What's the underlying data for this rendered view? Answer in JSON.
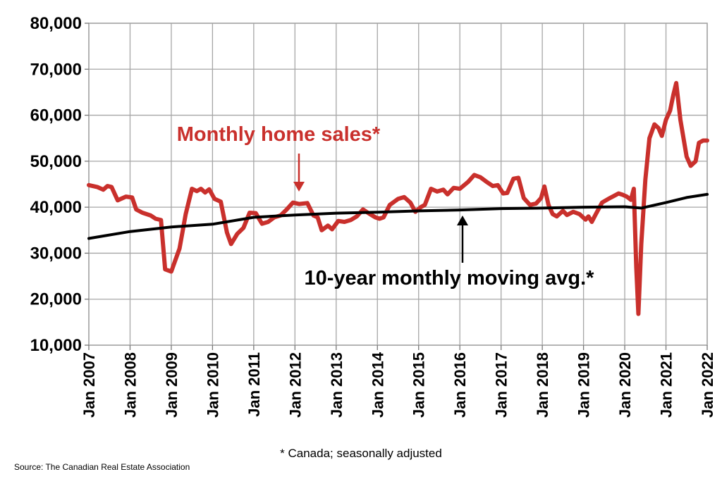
{
  "chart_data": {
    "type": "line",
    "ylim": [
      10000,
      80000
    ],
    "y_ticks": [
      10000,
      20000,
      30000,
      40000,
      50000,
      60000,
      70000,
      80000
    ],
    "y_tick_labels": [
      "10,000",
      "20,000",
      "30,000",
      "40,000",
      "50,000",
      "60,000",
      "70,000",
      "80,000"
    ],
    "x_ticks": [
      2007,
      2008,
      2009,
      2010,
      2011,
      2012,
      2013,
      2014,
      2015,
      2016,
      2017,
      2018,
      2019,
      2020,
      2021,
      2022
    ],
    "x_tick_labels": [
      "Jan 2007",
      "Jan 2008",
      "Jan 2009",
      "Jan 2010",
      "Jan 2011",
      "Jan 2012",
      "Jan 2013",
      "Jan 2014",
      "Jan 2015",
      "Jan 2016",
      "Jan 2017",
      "Jan 2018",
      "Jan 2019",
      "Jan 2020",
      "Jan 2021",
      "Jan 2022"
    ],
    "xlim": [
      2007,
      2022
    ],
    "grid": true,
    "series": [
      {
        "name": "Monthly home sales*",
        "color": "#c9302c",
        "points": [
          [
            2007.0,
            44800
          ],
          [
            2007.2,
            44400
          ],
          [
            2007.35,
            43800
          ],
          [
            2007.45,
            44600
          ],
          [
            2007.55,
            44400
          ],
          [
            2007.7,
            41500
          ],
          [
            2007.9,
            42300
          ],
          [
            2008.05,
            42100
          ],
          [
            2008.15,
            39500
          ],
          [
            2008.3,
            38800
          ],
          [
            2008.5,
            38200
          ],
          [
            2008.62,
            37500
          ],
          [
            2008.75,
            37200
          ],
          [
            2008.85,
            26500
          ],
          [
            2009.0,
            26000
          ],
          [
            2009.2,
            31000
          ],
          [
            2009.35,
            38500
          ],
          [
            2009.5,
            44000
          ],
          [
            2009.62,
            43500
          ],
          [
            2009.72,
            44000
          ],
          [
            2009.82,
            43200
          ],
          [
            2009.92,
            43900
          ],
          [
            2010.05,
            41800
          ],
          [
            2010.2,
            41200
          ],
          [
            2010.35,
            34500
          ],
          [
            2010.45,
            32000
          ],
          [
            2010.6,
            34200
          ],
          [
            2010.75,
            35500
          ],
          [
            2010.9,
            38800
          ],
          [
            2011.05,
            38700
          ],
          [
            2011.2,
            36400
          ],
          [
            2011.35,
            36800
          ],
          [
            2011.5,
            37800
          ],
          [
            2011.65,
            38200
          ],
          [
            2011.8,
            39500
          ],
          [
            2011.95,
            41000
          ],
          [
            2012.1,
            40700
          ],
          [
            2012.3,
            40900
          ],
          [
            2012.45,
            38200
          ],
          [
            2012.55,
            37800
          ],
          [
            2012.65,
            35000
          ],
          [
            2012.8,
            36000
          ],
          [
            2012.9,
            35200
          ],
          [
            2013.05,
            37000
          ],
          [
            2013.2,
            36800
          ],
          [
            2013.35,
            37200
          ],
          [
            2013.5,
            38000
          ],
          [
            2013.65,
            39500
          ],
          [
            2013.8,
            38600
          ],
          [
            2013.95,
            37800
          ],
          [
            2014.05,
            37500
          ],
          [
            2014.15,
            37800
          ],
          [
            2014.3,
            40500
          ],
          [
            2014.5,
            41800
          ],
          [
            2014.65,
            42200
          ],
          [
            2014.8,
            41000
          ],
          [
            2014.92,
            39000
          ],
          [
            2015.05,
            40000
          ],
          [
            2015.15,
            40500
          ],
          [
            2015.3,
            44000
          ],
          [
            2015.45,
            43400
          ],
          [
            2015.6,
            43800
          ],
          [
            2015.7,
            42800
          ],
          [
            2015.85,
            44200
          ],
          [
            2016.0,
            44000
          ],
          [
            2016.2,
            45500
          ],
          [
            2016.35,
            47000
          ],
          [
            2016.5,
            46500
          ],
          [
            2016.65,
            45500
          ],
          [
            2016.8,
            44600
          ],
          [
            2016.92,
            44800
          ],
          [
            2017.05,
            43000
          ],
          [
            2017.15,
            43100
          ],
          [
            2017.3,
            46200
          ],
          [
            2017.42,
            46400
          ],
          [
            2017.55,
            42000
          ],
          [
            2017.7,
            40500
          ],
          [
            2017.85,
            40800
          ],
          [
            2017.97,
            42000
          ],
          [
            2018.05,
            44500
          ],
          [
            2018.15,
            40500
          ],
          [
            2018.25,
            38500
          ],
          [
            2018.35,
            38000
          ],
          [
            2018.5,
            39200
          ],
          [
            2018.6,
            38300
          ],
          [
            2018.75,
            39000
          ],
          [
            2018.9,
            38500
          ],
          [
            2019.05,
            37300
          ],
          [
            2019.12,
            38000
          ],
          [
            2019.2,
            36800
          ],
          [
            2019.3,
            38500
          ],
          [
            2019.45,
            41000
          ],
          [
            2019.6,
            41800
          ],
          [
            2019.75,
            42500
          ],
          [
            2019.85,
            43000
          ],
          [
            2019.95,
            42700
          ],
          [
            2020.05,
            42300
          ],
          [
            2020.15,
            41600
          ],
          [
            2020.22,
            44000
          ],
          [
            2020.28,
            27000
          ],
          [
            2020.33,
            16800
          ],
          [
            2020.4,
            32000
          ],
          [
            2020.5,
            46000
          ],
          [
            2020.6,
            55000
          ],
          [
            2020.72,
            58000
          ],
          [
            2020.82,
            57200
          ],
          [
            2020.9,
            55500
          ],
          [
            2021.0,
            59000
          ],
          [
            2021.1,
            61000
          ],
          [
            2021.18,
            64500
          ],
          [
            2021.25,
            67000
          ],
          [
            2021.35,
            59000
          ],
          [
            2021.5,
            51000
          ],
          [
            2021.6,
            49000
          ],
          [
            2021.72,
            50000
          ],
          [
            2021.8,
            54000
          ],
          [
            2021.9,
            54500
          ],
          [
            2022.0,
            54500
          ]
        ]
      },
      {
        "name": "10-year monthly moving avg.*",
        "color": "#000000",
        "points": [
          [
            2007.0,
            33200
          ],
          [
            2008.0,
            34700
          ],
          [
            2009.0,
            35700
          ],
          [
            2010.0,
            36300
          ],
          [
            2011.0,
            37800
          ],
          [
            2012.0,
            38300
          ],
          [
            2013.0,
            38700
          ],
          [
            2014.0,
            38900
          ],
          [
            2015.0,
            39200
          ],
          [
            2016.0,
            39400
          ],
          [
            2017.0,
            39700
          ],
          [
            2018.0,
            39800
          ],
          [
            2019.0,
            40000
          ],
          [
            2020.0,
            40100
          ],
          [
            2020.4,
            39800
          ],
          [
            2020.8,
            40600
          ],
          [
            2021.0,
            41000
          ],
          [
            2021.5,
            42100
          ],
          [
            2022.0,
            42800
          ]
        ]
      }
    ],
    "annotations": [
      {
        "text": "Monthly home sales*",
        "series": 0
      },
      {
        "text": "10-year monthly moving avg.*",
        "series": 1
      }
    ]
  },
  "footnote": "* Canada; seasonally adjusted",
  "source": "Source: The Canadian Real Estate Association"
}
